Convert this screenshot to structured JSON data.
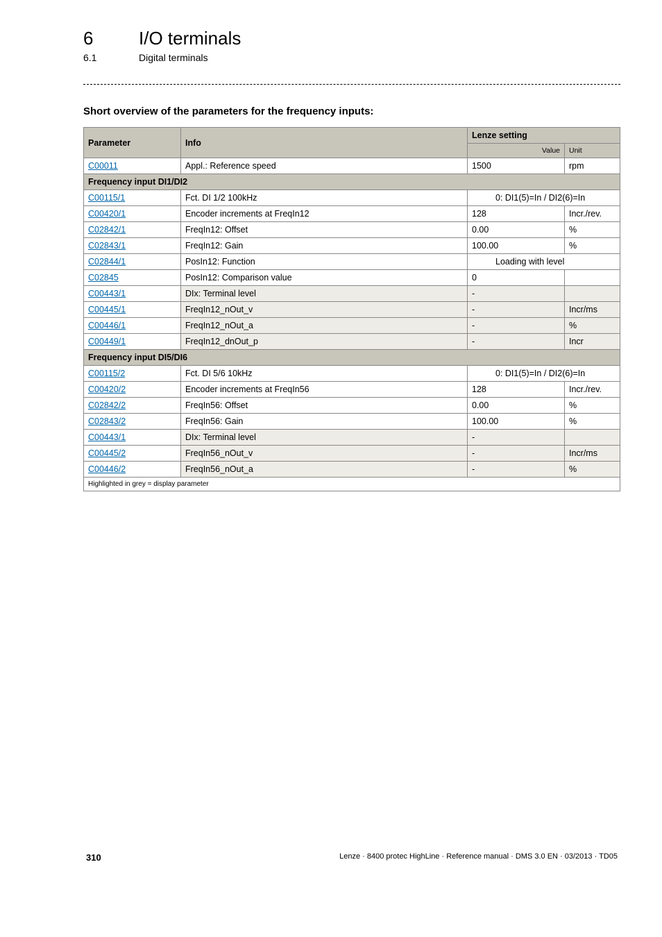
{
  "header": {
    "chapter_num": "6",
    "chapter_title": "I/O terminals",
    "sub_num": "6.1",
    "sub_title": "Digital terminals"
  },
  "section_title": "Short overview of the parameters for the frequency inputs:",
  "table": {
    "head": {
      "parameter": "Parameter",
      "info": "Info",
      "lenze": "Lenze setting",
      "value": "Value",
      "unit": "Unit"
    },
    "rows": [
      {
        "type": "data",
        "param": "C00011",
        "info": "Appl.: Reference speed",
        "value": "1500",
        "unit": "rpm",
        "display": false
      },
      {
        "type": "group",
        "label": "Frequency input DI1/DI2"
      },
      {
        "type": "data",
        "param": "C00115/1",
        "info": "Fct. DI 1/2 100kHz",
        "value": "0: DI1(5)=In / DI2(6)=In",
        "unit": "",
        "display": false,
        "spanValueUnit": true
      },
      {
        "type": "data",
        "param": "C00420/1",
        "info": "Encoder increments at FreqIn12",
        "value": "128",
        "unit": "Incr./rev.",
        "display": false
      },
      {
        "type": "data",
        "param": "C02842/1",
        "info": "FreqIn12: Offset",
        "value": "0.00",
        "unit": "%",
        "display": false
      },
      {
        "type": "data",
        "param": "C02843/1",
        "info": "FreqIn12: Gain",
        "value": "100.00",
        "unit": "%",
        "display": false
      },
      {
        "type": "data",
        "param": "C02844/1",
        "info": "PosIn12: Function",
        "value": "Loading with level",
        "unit": "",
        "display": false,
        "spanValueUnit": true
      },
      {
        "type": "data",
        "param": "C02845",
        "info": "PosIn12: Comparison value",
        "value": "0",
        "unit": "",
        "display": false
      },
      {
        "type": "data",
        "param": "C00443/1",
        "info": "DIx: Terminal level",
        "value": "-",
        "unit": "",
        "display": true
      },
      {
        "type": "data",
        "param": "C00445/1",
        "info": "FreqIn12_nOut_v",
        "value": "-",
        "unit": "Incr/ms",
        "display": true
      },
      {
        "type": "data",
        "param": "C00446/1",
        "info": "FreqIn12_nOut_a",
        "value": "-",
        "unit": "%",
        "display": true
      },
      {
        "type": "data",
        "param": "C00449/1",
        "info": "FreqIn12_dnOut_p",
        "value": "-",
        "unit": "Incr",
        "display": true
      },
      {
        "type": "group",
        "label": "Frequency input DI5/DI6"
      },
      {
        "type": "data",
        "param": "C00115/2",
        "info": "Fct. DI 5/6 10kHz",
        "value": "0: DI1(5)=In / DI2(6)=In",
        "unit": "",
        "display": false,
        "spanValueUnit": true
      },
      {
        "type": "data",
        "param": "C00420/2",
        "info": "Encoder increments at FreqIn56",
        "value": "128",
        "unit": "Incr./rev.",
        "display": false
      },
      {
        "type": "data",
        "param": "C02842/2",
        "info": "FreqIn56: Offset",
        "value": "0.00",
        "unit": "%",
        "display": false
      },
      {
        "type": "data",
        "param": "C02843/2",
        "info": "FreqIn56: Gain",
        "value": "100.00",
        "unit": "%",
        "display": false
      },
      {
        "type": "data",
        "param": "C00443/1",
        "info": "DIx: Terminal level",
        "value": "-",
        "unit": "",
        "display": true
      },
      {
        "type": "data",
        "param": "C00445/2",
        "info": "FreqIn56_nOut_v",
        "value": "-",
        "unit": "Incr/ms",
        "display": true
      },
      {
        "type": "data",
        "param": "C00446/2",
        "info": "FreqIn56_nOut_a",
        "value": "-",
        "unit": "%",
        "display": true
      }
    ],
    "footnote": "Highlighted in grey = display parameter"
  },
  "footer": {
    "page": "310",
    "right": "Lenze · 8400 protec HighLine · Reference manual · DMS 3.0 EN · 03/2013 · TD05"
  },
  "colors": {
    "header_bg": "#c8c5bb",
    "display_bg": "#eeece6",
    "link": "#0066aa",
    "border": "#888888"
  }
}
